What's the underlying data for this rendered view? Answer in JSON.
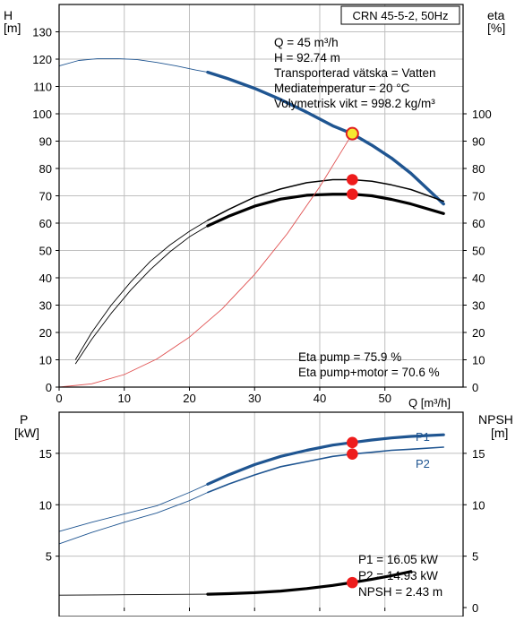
{
  "chart_data": [
    {
      "type": "line",
      "title": "CRN 45-5-2, 50Hz",
      "xlabel": "Q [m³/h]",
      "ylabel_left": [
        "H",
        "[m]"
      ],
      "ylabel_right": [
        "eta",
        "[%]"
      ],
      "xlim": [
        0,
        62
      ],
      "ylim": [
        0,
        140
      ],
      "ylim_right": [
        0,
        140
      ],
      "x_ticks": [
        "0",
        "10",
        "20",
        "30",
        "40",
        "50"
      ],
      "y_ticks_left": [
        "0",
        "10",
        "20",
        "30",
        "40",
        "50",
        "60",
        "70",
        "80",
        "90",
        "100",
        "110",
        "120",
        "130"
      ],
      "y_ticks_right": [
        "0",
        "10",
        "20",
        "30",
        "40",
        "50",
        "60",
        "70",
        "80",
        "90",
        "100"
      ],
      "grid": true,
      "info_lines": [
        "Q = 45 m³/h",
        "H = 92.74 m",
        "Transporterad vätska = Vatten",
        "Mediatemperatur = 20 °C",
        "Volymetrisk vikt = 998.2 kg/m³"
      ],
      "eta_lines": [
        "Eta pump = 75.9 %",
        "Eta pump+motor = 70.6 %"
      ],
      "series": [
        {
          "role": "head",
          "color": "#1f5591",
          "thin_range": [
            0,
            22.8
          ],
          "x": [
            0,
            3,
            6,
            9,
            12,
            15,
            18,
            21,
            22.8,
            26,
            30,
            34,
            38,
            42,
            45,
            48,
            51,
            54,
            59
          ],
          "y": [
            117.5,
            119.5,
            120.2,
            120.2,
            119.8,
            118.8,
            117.5,
            116,
            115.2,
            112.8,
            109.3,
            105.2,
            100.6,
            95.6,
            92.7,
            88.5,
            83.8,
            78.2,
            67
          ]
        },
        {
          "role": "eta-pump",
          "color": "#000000",
          "thin_range": [
            2.5,
            22.8
          ],
          "x": [
            2.5,
            5,
            8,
            11,
            14,
            17,
            20,
            22.8,
            26,
            30,
            34,
            38,
            42,
            45,
            48,
            51,
            54,
            59
          ],
          "y": [
            10,
            20,
            30,
            38.5,
            46,
            52,
            57,
            61,
            65,
            69.5,
            72.5,
            74.8,
            75.9,
            75.9,
            75.3,
            74,
            72.3,
            68
          ]
        },
        {
          "role": "eta-pump-motor",
          "color": "#000000",
          "thin_range": [
            2.5,
            22.8
          ],
          "x": [
            2.5,
            5,
            8,
            11,
            14,
            17,
            20,
            22.8,
            26,
            30,
            34,
            38,
            42,
            45,
            48,
            51,
            54,
            59
          ],
          "y": [
            8.5,
            17.5,
            27,
            35.5,
            43,
            49.5,
            55,
            59,
            62.5,
            66.2,
            68.8,
            70.2,
            70.6,
            70.6,
            70,
            68.7,
            67,
            63.5
          ]
        },
        {
          "role": "system-curve",
          "color": "#e05050",
          "thin_range": [
            0,
            45
          ],
          "x": [
            0,
            5,
            10,
            15,
            20,
            25,
            30,
            35,
            40,
            45
          ],
          "y": [
            0,
            1.2,
            4.6,
            10.3,
            18.3,
            28.6,
            41.2,
            56.1,
            73.3,
            92.7
          ]
        }
      ],
      "points": [
        {
          "role": "operating-point-head",
          "x": 45,
          "y": 92.74,
          "style": "yellow"
        },
        {
          "role": "operating-point-eta-pump",
          "x": 45,
          "y": 75.9,
          "style": "red"
        },
        {
          "role": "operating-point-eta-motor",
          "x": 45,
          "y": 70.6,
          "style": "red"
        }
      ]
    },
    {
      "type": "line",
      "ylabel_left": [
        "P",
        "[kW]"
      ],
      "ylabel_right": [
        "NPSH",
        "[m]"
      ],
      "xlim": [
        0,
        62
      ],
      "ylim": [
        0,
        19
      ],
      "ylim_right": [
        0,
        19
      ],
      "y_ticks_left": [
        "5",
        "10",
        "15"
      ],
      "y_ticks_right": [
        "0",
        "5",
        "10",
        "15"
      ],
      "grid": true,
      "value_lines": [
        "P1 = 16.05 kW",
        "P2 = 14.93 kW",
        "NPSH = 2.43 m"
      ],
      "series": [
        {
          "name": "P1",
          "role": "p1",
          "color": "#1f5591",
          "thin_range": [
            0,
            22.8
          ],
          "x": [
            0,
            5,
            10,
            15,
            20,
            22.8,
            26,
            30,
            34,
            38,
            42,
            45,
            48,
            51,
            54,
            59
          ],
          "y": [
            7.4,
            8.3,
            9.1,
            9.9,
            11.2,
            12,
            12.9,
            13.9,
            14.7,
            15.3,
            15.8,
            16.05,
            16.3,
            16.5,
            16.65,
            16.8
          ]
        },
        {
          "name": "P2",
          "role": "p2",
          "color": "#1f5591",
          "thin_range": [
            0,
            22.8
          ],
          "x": [
            0,
            5,
            10,
            15,
            20,
            22.8,
            26,
            30,
            34,
            38,
            42,
            45,
            48,
            51,
            54,
            59
          ],
          "y": [
            6.2,
            7.3,
            8.3,
            9.2,
            10.4,
            11.2,
            12,
            12.9,
            13.7,
            14.2,
            14.7,
            14.93,
            15.1,
            15.3,
            15.4,
            15.6
          ]
        },
        {
          "role": "npsh",
          "color": "#000000",
          "thin_range": [
            0,
            22.8
          ],
          "x": [
            0,
            10,
            22.8,
            26,
            30,
            34,
            38,
            42,
            45,
            48,
            51,
            54
          ],
          "y": [
            1.2,
            1.25,
            1.3,
            1.35,
            1.45,
            1.6,
            1.85,
            2.15,
            2.43,
            2.75,
            3.1,
            3.5
          ]
        }
      ],
      "points": [
        {
          "role": "operating-point-p1",
          "x": 45,
          "y": 16.05,
          "style": "red"
        },
        {
          "role": "operating-point-p2",
          "x": 45,
          "y": 14.93,
          "style": "red"
        },
        {
          "role": "operating-point-npsh",
          "x": 45,
          "y": 2.43,
          "style": "red"
        }
      ]
    }
  ]
}
